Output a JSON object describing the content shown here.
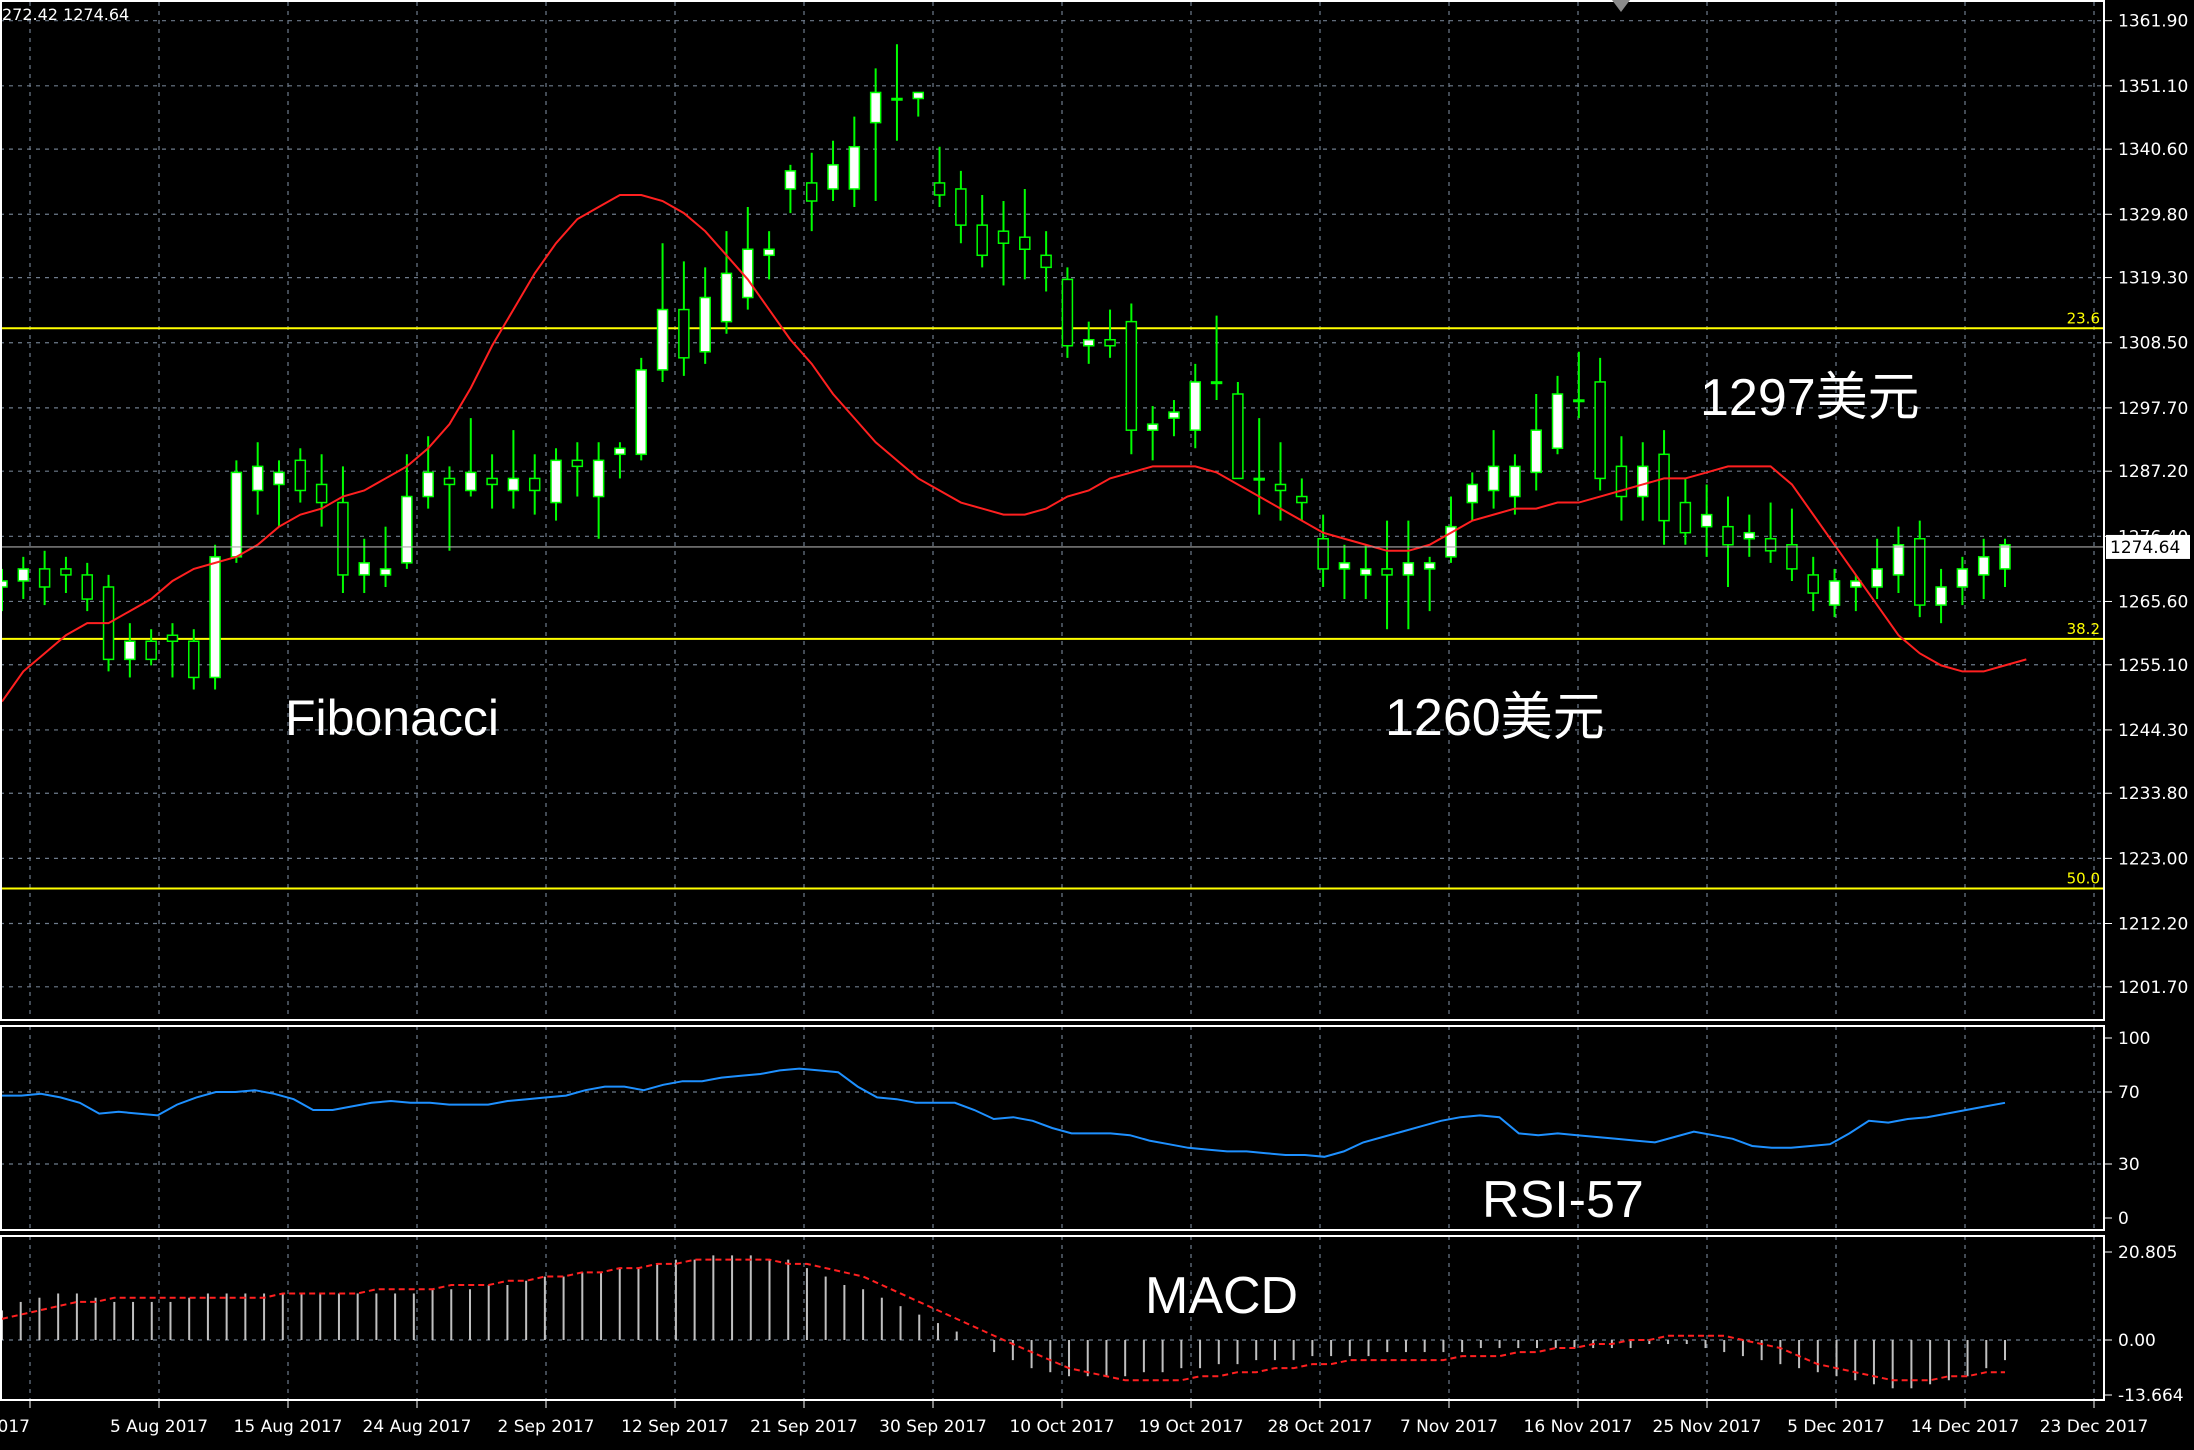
{
  "header": {
    "ohlc_readout": "272.42 1274.64"
  },
  "chart_data": [
    {
      "type": "candlestick",
      "title": "",
      "ylim": [
        1196.2,
        1365.0
      ],
      "y_ticks": [
        "1361.90",
        "1351.10",
        "1340.60",
        "1329.80",
        "1319.30",
        "1308.50",
        "1297.70",
        "1287.20",
        "1276.40",
        "1265.60",
        "1255.10",
        "1244.30",
        "1233.80",
        "1223.00",
        "1212.20",
        "1201.70"
      ],
      "y_tick_values": [
        1361.9,
        1351.1,
        1340.6,
        1329.8,
        1319.3,
        1308.5,
        1297.7,
        1287.2,
        1276.4,
        1265.6,
        1255.1,
        1244.3,
        1233.8,
        1223.0,
        1212.2,
        1201.7
      ],
      "x_labels": [
        "2017",
        "5 Aug 2017",
        "15 Aug 2017",
        "24 Aug 2017",
        "2 Sep 2017",
        "12 Sep 2017",
        "21 Sep 2017",
        "30 Sep 2017",
        "10 Oct 2017",
        "19 Oct 2017",
        "28 Oct 2017",
        "7 Nov 2017",
        "16 Nov 2017",
        "25 Nov 2017",
        "5 Dec 2017",
        "14 Dec 2017",
        "23 Dec 2017"
      ],
      "current_price": {
        "value": 1274.64,
        "label": "1274.64"
      },
      "fibonacci_levels": [
        {
          "label": "23.6",
          "value": 1310.9
        },
        {
          "label": "38.2",
          "value": 1259.4
        },
        {
          "label": "50.0",
          "value": 1218.0
        }
      ],
      "moving_average": [
        1249,
        1254,
        1257,
        1260,
        1262,
        1262,
        1264,
        1266,
        1269,
        1271,
        1272,
        1273,
        1275,
        1278,
        1280,
        1281,
        1283,
        1284,
        1286,
        1288,
        1291,
        1295,
        1301,
        1308,
        1314,
        1320,
        1325,
        1329,
        1331,
        1333,
        1333,
        1332,
        1330,
        1327,
        1323,
        1319,
        1314,
        1309,
        1305,
        1300,
        1296,
        1292,
        1289,
        1286,
        1284,
        1282,
        1281,
        1280,
        1280,
        1281,
        1283,
        1284,
        1286,
        1287,
        1288,
        1288,
        1288,
        1287,
        1285,
        1283,
        1281,
        1279,
        1277,
        1276,
        1275,
        1274,
        1274,
        1275,
        1277,
        1279,
        1280,
        1281,
        1281,
        1282,
        1282,
        1283,
        1284,
        1285,
        1286,
        1286,
        1287,
        1288,
        1288,
        1288,
        1285,
        1280,
        1275,
        1270,
        1265,
        1260,
        1257,
        1255,
        1254,
        1254,
        1255,
        1256
      ],
      "candles": [
        {
          "o": 1268,
          "h": 1271,
          "l": 1264,
          "c": 1269
        },
        {
          "o": 1269,
          "h": 1273,
          "l": 1266,
          "c": 1271
        },
        {
          "o": 1271,
          "h": 1274,
          "l": 1265,
          "c": 1268
        },
        {
          "o": 1271,
          "h": 1273,
          "l": 1267,
          "c": 1270
        },
        {
          "o": 1270,
          "h": 1272,
          "l": 1264,
          "c": 1266
        },
        {
          "o": 1268,
          "h": 1270,
          "l": 1254,
          "c": 1256
        },
        {
          "o": 1256,
          "h": 1262,
          "l": 1253,
          "c": 1259
        },
        {
          "o": 1259,
          "h": 1261,
          "l": 1255,
          "c": 1256
        },
        {
          "o": 1260,
          "h": 1262,
          "l": 1253,
          "c": 1259
        },
        {
          "o": 1259,
          "h": 1261,
          "l": 1251,
          "c": 1253
        },
        {
          "o": 1253,
          "h": 1275,
          "l": 1251,
          "c": 1273
        },
        {
          "o": 1273,
          "h": 1289,
          "l": 1272,
          "c": 1287
        },
        {
          "o": 1284,
          "h": 1292,
          "l": 1280,
          "c": 1288
        },
        {
          "o": 1285,
          "h": 1289,
          "l": 1278,
          "c": 1287
        },
        {
          "o": 1289,
          "h": 1291,
          "l": 1282,
          "c": 1284
        },
        {
          "o": 1285,
          "h": 1290,
          "l": 1278,
          "c": 1282
        },
        {
          "o": 1282,
          "h": 1288,
          "l": 1267,
          "c": 1270
        },
        {
          "o": 1270,
          "h": 1276,
          "l": 1267,
          "c": 1272
        },
        {
          "o": 1270,
          "h": 1278,
          "l": 1268,
          "c": 1271
        },
        {
          "o": 1272,
          "h": 1290,
          "l": 1271,
          "c": 1283
        },
        {
          "o": 1283,
          "h": 1293,
          "l": 1281,
          "c": 1287
        },
        {
          "o": 1286,
          "h": 1288,
          "l": 1274,
          "c": 1285
        },
        {
          "o": 1284,
          "h": 1296,
          "l": 1283,
          "c": 1287
        },
        {
          "o": 1286,
          "h": 1290,
          "l": 1281,
          "c": 1285
        },
        {
          "o": 1284,
          "h": 1294,
          "l": 1281,
          "c": 1286
        },
        {
          "o": 1286,
          "h": 1290,
          "l": 1280,
          "c": 1284
        },
        {
          "o": 1282,
          "h": 1291,
          "l": 1279,
          "c": 1289
        },
        {
          "o": 1289,
          "h": 1292,
          "l": 1283,
          "c": 1288
        },
        {
          "o": 1283,
          "h": 1292,
          "l": 1276,
          "c": 1289
        },
        {
          "o": 1290,
          "h": 1292,
          "l": 1286,
          "c": 1291
        },
        {
          "o": 1290,
          "h": 1306,
          "l": 1289,
          "c": 1304
        },
        {
          "o": 1304,
          "h": 1325,
          "l": 1302,
          "c": 1314
        },
        {
          "o": 1314,
          "h": 1322,
          "l": 1303,
          "c": 1306
        },
        {
          "o": 1307,
          "h": 1321,
          "l": 1305,
          "c": 1316
        },
        {
          "o": 1312,
          "h": 1327,
          "l": 1310,
          "c": 1320
        },
        {
          "o": 1316,
          "h": 1331,
          "l": 1314,
          "c": 1324
        },
        {
          "o": 1323,
          "h": 1327,
          "l": 1319,
          "c": 1324
        },
        {
          "o": 1334,
          "h": 1338,
          "l": 1330,
          "c": 1337
        },
        {
          "o": 1335,
          "h": 1340,
          "l": 1327,
          "c": 1332
        },
        {
          "o": 1334,
          "h": 1342,
          "l": 1332,
          "c": 1338
        },
        {
          "o": 1334,
          "h": 1346,
          "l": 1331,
          "c": 1341
        },
        {
          "o": 1345,
          "h": 1354,
          "l": 1332,
          "c": 1350
        },
        {
          "o": 1349,
          "h": 1358,
          "l": 1342,
          "c": 1349
        },
        {
          "o": 1349,
          "h": 1350,
          "l": 1346,
          "c": 1350
        },
        {
          "o": 1335,
          "h": 1341,
          "l": 1331,
          "c": 1333
        },
        {
          "o": 1334,
          "h": 1337,
          "l": 1325,
          "c": 1328
        },
        {
          "o": 1328,
          "h": 1333,
          "l": 1321,
          "c": 1323
        },
        {
          "o": 1327,
          "h": 1332,
          "l": 1318,
          "c": 1325
        },
        {
          "o": 1326,
          "h": 1334,
          "l": 1319,
          "c": 1324
        },
        {
          "o": 1323,
          "h": 1327,
          "l": 1317,
          "c": 1321
        },
        {
          "o": 1319,
          "h": 1321,
          "l": 1306,
          "c": 1308
        },
        {
          "o": 1308,
          "h": 1312,
          "l": 1305,
          "c": 1309
        },
        {
          "o": 1309,
          "h": 1314,
          "l": 1306,
          "c": 1308
        },
        {
          "o": 1312,
          "h": 1315,
          "l": 1290,
          "c": 1294
        },
        {
          "o": 1294,
          "h": 1298,
          "l": 1289,
          "c": 1295
        },
        {
          "o": 1296,
          "h": 1299,
          "l": 1293,
          "c": 1297
        },
        {
          "o": 1294,
          "h": 1305,
          "l": 1291,
          "c": 1302
        },
        {
          "o": 1302,
          "h": 1313,
          "l": 1299,
          "c": 1302
        },
        {
          "o": 1300,
          "h": 1302,
          "l": 1286,
          "c": 1286
        },
        {
          "o": 1286,
          "h": 1296,
          "l": 1280,
          "c": 1286
        },
        {
          "o": 1285,
          "h": 1292,
          "l": 1279,
          "c": 1284
        },
        {
          "o": 1283,
          "h": 1286,
          "l": 1279,
          "c": 1282
        },
        {
          "o": 1276,
          "h": 1280,
          "l": 1268,
          "c": 1271
        },
        {
          "o": 1271,
          "h": 1275,
          "l": 1266,
          "c": 1272
        },
        {
          "o": 1270,
          "h": 1275,
          "l": 1266,
          "c": 1271
        },
        {
          "o": 1271,
          "h": 1279,
          "l": 1261,
          "c": 1270
        },
        {
          "o": 1270,
          "h": 1279,
          "l": 1261,
          "c": 1272
        },
        {
          "o": 1271,
          "h": 1273,
          "l": 1264,
          "c": 1272
        },
        {
          "o": 1273,
          "h": 1283,
          "l": 1272,
          "c": 1278
        },
        {
          "o": 1282,
          "h": 1287,
          "l": 1279,
          "c": 1285
        },
        {
          "o": 1284,
          "h": 1294,
          "l": 1281,
          "c": 1288
        },
        {
          "o": 1283,
          "h": 1290,
          "l": 1280,
          "c": 1288
        },
        {
          "o": 1287,
          "h": 1300,
          "l": 1284,
          "c": 1294
        },
        {
          "o": 1291,
          "h": 1303,
          "l": 1290,
          "c": 1300
        },
        {
          "o": 1299,
          "h": 1307,
          "l": 1296,
          "c": 1299
        },
        {
          "o": 1302,
          "h": 1306,
          "l": 1284,
          "c": 1286
        },
        {
          "o": 1288,
          "h": 1293,
          "l": 1279,
          "c": 1283
        },
        {
          "o": 1283,
          "h": 1292,
          "l": 1279,
          "c": 1288
        },
        {
          "o": 1290,
          "h": 1294,
          "l": 1275,
          "c": 1279
        },
        {
          "o": 1282,
          "h": 1286,
          "l": 1275,
          "c": 1277
        },
        {
          "o": 1278,
          "h": 1285,
          "l": 1273,
          "c": 1280
        },
        {
          "o": 1278,
          "h": 1283,
          "l": 1268,
          "c": 1275
        },
        {
          "o": 1276,
          "h": 1280,
          "l": 1273,
          "c": 1277
        },
        {
          "o": 1276,
          "h": 1282,
          "l": 1272,
          "c": 1274
        },
        {
          "o": 1275,
          "h": 1281,
          "l": 1269,
          "c": 1271
        },
        {
          "o": 1270,
          "h": 1273,
          "l": 1264,
          "c": 1267
        },
        {
          "o": 1265,
          "h": 1271,
          "l": 1263,
          "c": 1269
        },
        {
          "o": 1268,
          "h": 1270,
          "l": 1264,
          "c": 1269
        },
        {
          "o": 1268,
          "h": 1276,
          "l": 1266,
          "c": 1271
        },
        {
          "o": 1270,
          "h": 1278,
          "l": 1267,
          "c": 1275
        },
        {
          "o": 1276,
          "h": 1279,
          "l": 1263,
          "c": 1265
        },
        {
          "o": 1265,
          "h": 1271,
          "l": 1262,
          "c": 1268
        },
        {
          "o": 1268,
          "h": 1273,
          "l": 1265,
          "c": 1271
        },
        {
          "o": 1270,
          "h": 1276,
          "l": 1266,
          "c": 1273
        },
        {
          "o": 1271,
          "h": 1276,
          "l": 1268,
          "c": 1275
        }
      ]
    },
    {
      "type": "line",
      "title": "RSI",
      "ylim": [
        0,
        100
      ],
      "y_ticks": [
        "100",
        "70",
        "30",
        "0"
      ],
      "y_tick_values": [
        100,
        70,
        30,
        0
      ],
      "values": [
        68,
        68,
        69,
        67,
        64,
        58,
        59,
        58,
        57,
        63,
        67,
        70,
        70,
        71,
        69,
        66,
        60,
        60,
        62,
        64,
        65,
        64,
        64,
        63,
        63,
        63,
        65,
        66,
        67,
        68,
        71,
        73,
        73,
        71,
        74,
        76,
        76,
        78,
        79,
        80,
        82,
        83,
        82,
        81,
        73,
        67,
        66,
        64,
        64,
        64,
        60,
        55,
        56,
        54,
        50,
        47,
        47,
        47,
        46,
        43,
        41,
        39,
        38,
        37,
        37,
        36,
        35,
        35,
        34,
        37,
        42,
        45,
        48,
        51,
        54,
        56,
        57,
        56,
        47,
        46,
        47,
        46,
        45,
        44,
        43,
        42,
        45,
        48,
        46,
        44,
        40,
        39,
        39,
        40,
        41,
        47,
        54,
        53,
        55,
        56,
        58,
        60,
        62,
        64
      ]
    },
    {
      "type": "bar",
      "title": "MACD",
      "ylim": [
        -13.664,
        20.805
      ],
      "y_ticks": [
        "20.805",
        "0.00",
        "-13.664"
      ],
      "y_tick_values": [
        20.805,
        0.0,
        -13.664
      ],
      "histogram": [
        7,
        9,
        10,
        11,
        11,
        10,
        9,
        9,
        9,
        9,
        10,
        11,
        11,
        11,
        11,
        11,
        11,
        11,
        11,
        11,
        11,
        11,
        11,
        12,
        12,
        12,
        13,
        13,
        14,
        15,
        15,
        16,
        16,
        17,
        17,
        18,
        19,
        19,
        20,
        20,
        20,
        19,
        19,
        17,
        15,
        13,
        12,
        10,
        8,
        6,
        4,
        2,
        0,
        -3,
        -5,
        -7,
        -8,
        -9,
        -9,
        -9,
        -9,
        -8,
        -8,
        -7,
        -7,
        -6,
        -6,
        -5,
        -5,
        -5,
        -4,
        -4,
        -4,
        -4,
        -3,
        -3,
        -3,
        -3,
        -3,
        -2,
        -2,
        -2,
        -2,
        -2,
        -2,
        -2,
        -2,
        -2,
        -1,
        -1,
        -1,
        -2,
        -3,
        -4,
        -5,
        -6,
        -7,
        -8,
        -9,
        -10,
        -11,
        -12,
        -12,
        -11,
        -10,
        -9,
        -7,
        -5
      ],
      "signal": [
        5,
        6,
        7,
        8,
        9,
        9,
        10,
        10,
        10,
        10,
        10,
        10,
        10,
        10,
        10,
        11,
        11,
        11,
        11,
        11,
        12,
        12,
        12,
        12,
        13,
        13,
        13,
        14,
        14,
        15,
        15,
        16,
        16,
        17,
        17,
        18,
        18,
        19,
        19,
        19,
        19,
        19,
        18,
        18,
        17,
        16,
        15,
        13,
        11,
        9,
        7,
        5,
        3,
        1,
        -1,
        -3,
        -5,
        -7,
        -8,
        -9,
        -10,
        -10,
        -10,
        -10,
        -9,
        -9,
        -8,
        -8,
        -7,
        -7,
        -6,
        -6,
        -5,
        -5,
        -5,
        -5,
        -5,
        -5,
        -4,
        -4,
        -4,
        -3,
        -3,
        -2,
        -2,
        -1,
        -1,
        0,
        0,
        1,
        1,
        1,
        1,
        0,
        -1,
        -2,
        -4,
        -6,
        -7,
        -8,
        -9,
        -10,
        -10,
        -10,
        -9,
        -9,
        -8,
        -8
      ]
    }
  ],
  "annotations": {
    "fibonacci": "Fibonacci",
    "resistance": "1297美元",
    "support": "1260美元",
    "rsi": "RSI-57",
    "macd": "MACD"
  },
  "colors": {
    "background": "#000000",
    "grid": "#6e7b8b",
    "candle_up": "#ffffff",
    "candle_down": "#000000",
    "wick": "#00ff00",
    "moving_average": "#ff2020",
    "fibonacci": "#ffff00",
    "rsi_line": "#1e90ff",
    "macd_histogram": "#c0c0c0",
    "macd_signal": "#ff2020"
  }
}
